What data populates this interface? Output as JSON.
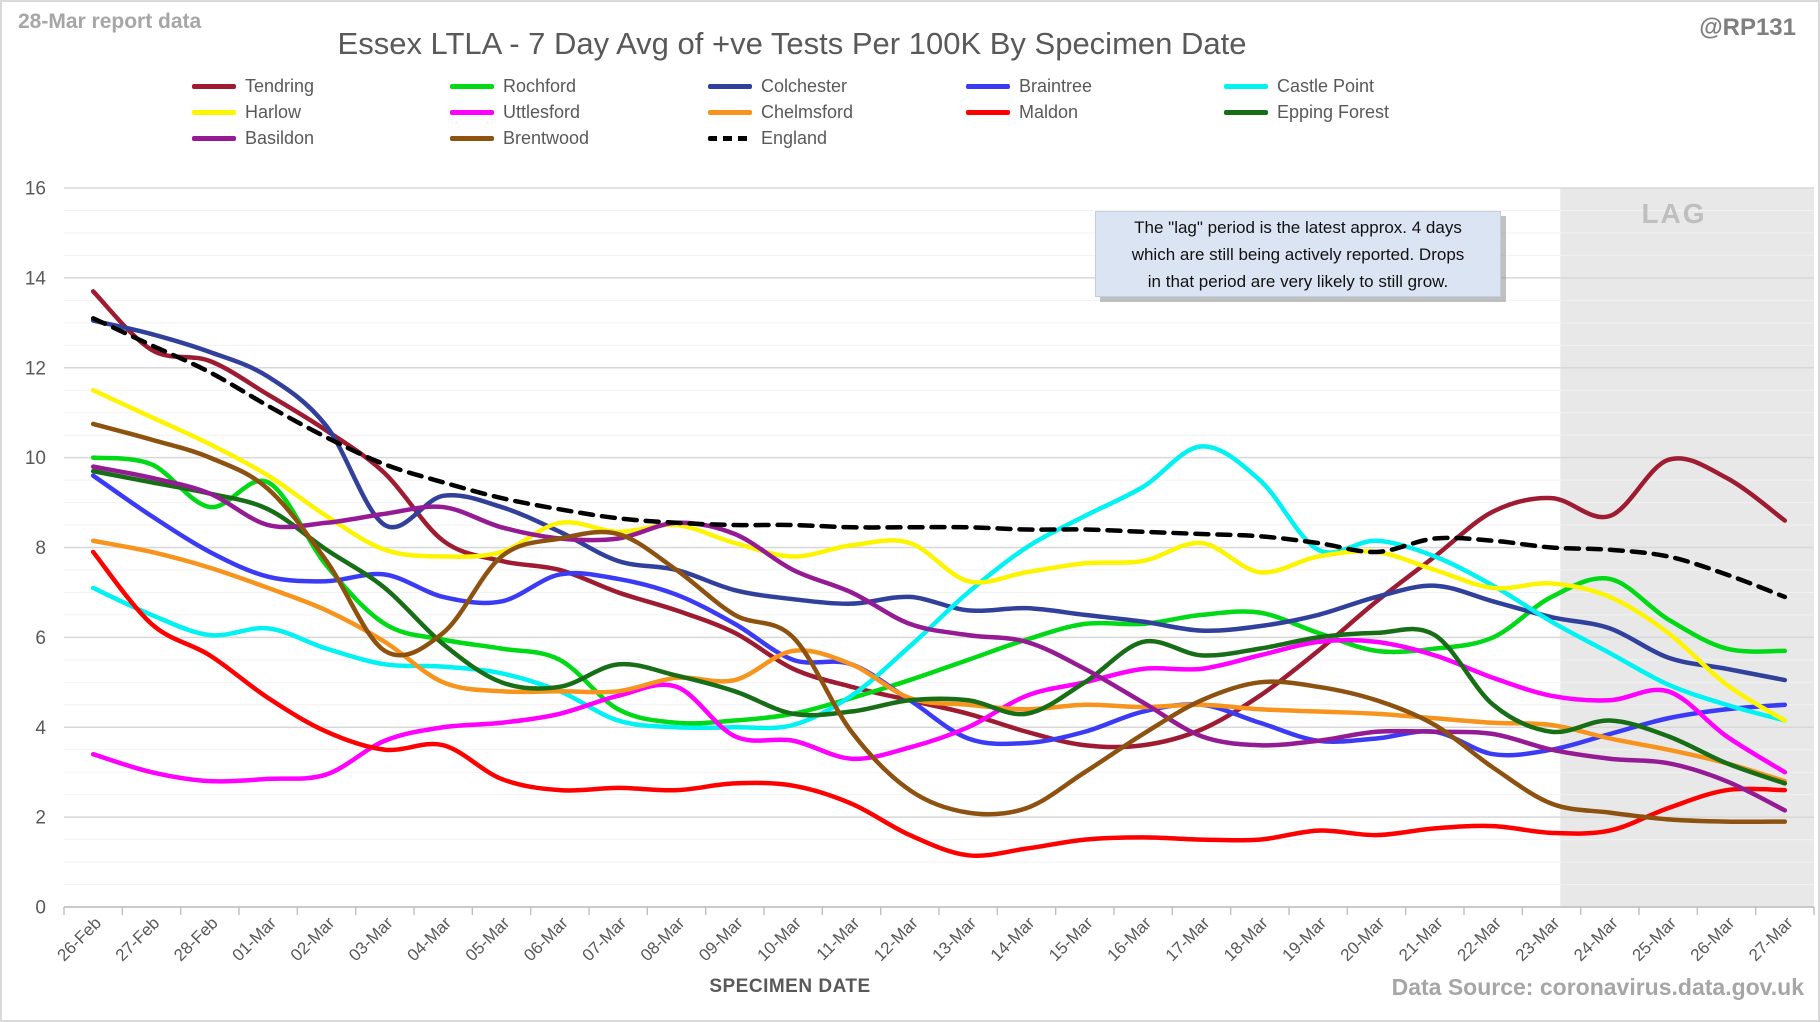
{
  "header": {
    "report_note": "28-Mar report data",
    "title": "Essex LTLA - 7 Day Avg of +ve Tests Per 100K By Specimen Date",
    "handle": "@RP131"
  },
  "annotation": {
    "lines": [
      "The \"lag\" period is the latest approx. 4 days",
      "which are still being actively reported.  Drops",
      "in that period are very likely to still grow."
    ]
  },
  "footer": {
    "xaxis_title": "SPECIMEN DATE",
    "data_source": "Data Source: coronavirus.data.gov.uk"
  },
  "chart_data": {
    "type": "line",
    "title": "Essex LTLA - 7 Day Avg of +ve Tests Per 100K By Specimen Date",
    "xlabel": "SPECIMEN DATE",
    "ylabel": "",
    "ylim": [
      0,
      16
    ],
    "y_major_step": 2,
    "y_minor_step": 0.5,
    "grid": true,
    "legend_position": "top",
    "lag_region": {
      "label": "LAG",
      "from_date": "24-Mar",
      "start_boundary": 25.65
    },
    "x": [
      "26-Feb",
      "27-Feb",
      "28-Feb",
      "01-Mar",
      "02-Mar",
      "03-Mar",
      "04-Mar",
      "05-Mar",
      "06-Mar",
      "07-Mar",
      "08-Mar",
      "09-Mar",
      "10-Mar",
      "11-Mar",
      "12-Mar",
      "13-Mar",
      "14-Mar",
      "15-Mar",
      "16-Mar",
      "17-Mar",
      "18-Mar",
      "19-Mar",
      "20-Mar",
      "21-Mar",
      "22-Mar",
      "23-Mar",
      "24-Mar",
      "25-Mar",
      "26-Mar",
      "27-Mar"
    ],
    "series": [
      {
        "name": "Tendring",
        "color": "#9e1b32",
        "dashed": false,
        "values": [
          13.7,
          12.4,
          12.15,
          11.4,
          10.6,
          9.65,
          8.15,
          7.7,
          7.5,
          7.0,
          6.6,
          6.1,
          5.3,
          4.9,
          4.6,
          4.3,
          3.9,
          3.6,
          3.6,
          3.95,
          4.7,
          5.7,
          6.8,
          7.8,
          8.8,
          9.1,
          8.7,
          9.95,
          9.55,
          8.6
        ]
      },
      {
        "name": "Rochford",
        "color": "#00d916",
        "dashed": false,
        "values": [
          10.0,
          9.85,
          8.9,
          9.45,
          7.6,
          6.3,
          5.95,
          5.75,
          5.5,
          4.4,
          4.1,
          4.15,
          4.3,
          4.65,
          5.05,
          5.5,
          5.95,
          6.3,
          6.3,
          6.5,
          6.55,
          6.1,
          5.7,
          5.75,
          6.0,
          6.9,
          7.3,
          6.4,
          5.75,
          5.7
        ]
      },
      {
        "name": "Colchester",
        "color": "#31409b",
        "dashed": false,
        "values": [
          13.05,
          12.75,
          12.35,
          11.8,
          10.7,
          8.5,
          9.15,
          8.9,
          8.35,
          7.7,
          7.5,
          7.05,
          6.85,
          6.75,
          6.9,
          6.6,
          6.65,
          6.5,
          6.35,
          6.15,
          6.25,
          6.5,
          6.9,
          7.15,
          6.8,
          6.45,
          6.2,
          5.55,
          5.3,
          5.05
        ]
      },
      {
        "name": "Braintree",
        "color": "#3b3bf5",
        "dashed": false,
        "values": [
          9.6,
          8.7,
          7.9,
          7.35,
          7.25,
          7.4,
          6.9,
          6.8,
          7.4,
          7.3,
          6.95,
          6.3,
          5.5,
          5.4,
          4.6,
          3.75,
          3.65,
          3.9,
          4.35,
          4.5,
          4.1,
          3.7,
          3.75,
          3.9,
          3.4,
          3.5,
          3.85,
          4.2,
          4.4,
          4.5
        ]
      },
      {
        "name": "Castle Point",
        "color": "#00f2f2",
        "dashed": false,
        "values": [
          7.1,
          6.5,
          6.05,
          6.2,
          5.75,
          5.4,
          5.35,
          5.2,
          4.8,
          4.15,
          4.0,
          4.0,
          4.05,
          4.7,
          5.8,
          7.0,
          8.0,
          8.7,
          9.35,
          10.25,
          9.5,
          7.95,
          8.15,
          7.8,
          7.15,
          6.35,
          5.65,
          4.95,
          4.5,
          4.15
        ]
      },
      {
        "name": "Harlow",
        "color": "#fdf500",
        "dashed": false,
        "values": [
          11.5,
          10.9,
          10.3,
          9.6,
          8.7,
          7.95,
          7.8,
          7.9,
          8.55,
          8.35,
          8.5,
          8.1,
          7.8,
          8.05,
          8.1,
          7.25,
          7.45,
          7.65,
          7.7,
          8.1,
          7.45,
          7.8,
          7.9,
          7.5,
          7.1,
          7.2,
          6.9,
          6.1,
          4.95,
          4.15
        ]
      },
      {
        "name": "Uttlesford",
        "color": "#ff00ff",
        "dashed": false,
        "values": [
          3.4,
          3.0,
          2.8,
          2.85,
          2.95,
          3.7,
          4.0,
          4.1,
          4.3,
          4.7,
          4.9,
          3.8,
          3.7,
          3.3,
          3.55,
          4.0,
          4.7,
          5.0,
          5.3,
          5.3,
          5.6,
          5.9,
          5.9,
          5.6,
          5.1,
          4.7,
          4.6,
          4.8,
          3.8,
          3.0
        ]
      },
      {
        "name": "Chelmsford",
        "color": "#f7941d",
        "dashed": false,
        "values": [
          8.15,
          7.9,
          7.55,
          7.1,
          6.6,
          5.9,
          5.0,
          4.8,
          4.8,
          4.8,
          5.1,
          5.05,
          5.7,
          5.4,
          4.65,
          4.5,
          4.4,
          4.5,
          4.45,
          4.5,
          4.4,
          4.35,
          4.3,
          4.2,
          4.1,
          4.05,
          3.75,
          3.5,
          3.2,
          2.8
        ]
      },
      {
        "name": "Maldon",
        "color": "#ff0000",
        "dashed": false,
        "values": [
          7.9,
          6.3,
          5.6,
          4.65,
          3.9,
          3.5,
          3.6,
          2.85,
          2.6,
          2.65,
          2.6,
          2.75,
          2.7,
          2.3,
          1.6,
          1.15,
          1.3,
          1.5,
          1.55,
          1.5,
          1.5,
          1.7,
          1.6,
          1.75,
          1.8,
          1.65,
          1.7,
          2.2,
          2.6,
          2.6
        ]
      },
      {
        "name": "Epping Forest",
        "color": "#176e17",
        "dashed": false,
        "values": [
          9.7,
          9.45,
          9.2,
          8.85,
          7.95,
          7.1,
          5.85,
          5.0,
          4.9,
          5.4,
          5.15,
          4.8,
          4.3,
          4.35,
          4.6,
          4.6,
          4.3,
          5.0,
          5.9,
          5.6,
          5.75,
          6.0,
          6.1,
          6.05,
          4.5,
          3.9,
          4.15,
          3.8,
          3.2,
          2.75
        ]
      },
      {
        "name": "Basildon",
        "color": "#951b95",
        "dashed": false,
        "values": [
          9.8,
          9.55,
          9.2,
          8.5,
          8.55,
          8.75,
          8.9,
          8.45,
          8.2,
          8.2,
          8.55,
          8.3,
          7.5,
          7.0,
          6.3,
          6.05,
          5.9,
          5.3,
          4.55,
          3.8,
          3.6,
          3.7,
          3.9,
          3.9,
          3.85,
          3.5,
          3.3,
          3.2,
          2.8,
          2.15
        ]
      },
      {
        "name": "Brentwood",
        "color": "#8e5210",
        "dashed": false,
        "values": [
          10.75,
          10.4,
          10.0,
          9.3,
          7.7,
          5.7,
          6.1,
          7.8,
          8.2,
          8.3,
          7.5,
          6.5,
          6.0,
          3.9,
          2.6,
          2.1,
          2.2,
          3.0,
          3.85,
          4.6,
          5.0,
          4.9,
          4.6,
          4.05,
          3.1,
          2.3,
          2.1,
          1.95,
          1.9,
          1.9
        ]
      },
      {
        "name": "England",
        "color": "#000000",
        "dashed": true,
        "values": [
          13.1,
          12.5,
          11.9,
          11.15,
          10.45,
          9.85,
          9.45,
          9.1,
          8.85,
          8.65,
          8.55,
          8.5,
          8.5,
          8.45,
          8.45,
          8.45,
          8.4,
          8.4,
          8.35,
          8.3,
          8.25,
          8.1,
          7.9,
          8.2,
          8.15,
          8.0,
          7.95,
          7.8,
          7.4,
          6.9
        ]
      }
    ],
    "colors": {
      "grid_minor": "#f2f2f2",
      "grid_major": "#d8d8d8",
      "axis": "#bfbfbf",
      "lag_fill": "#e8e8e8",
      "text": "#595959"
    }
  }
}
